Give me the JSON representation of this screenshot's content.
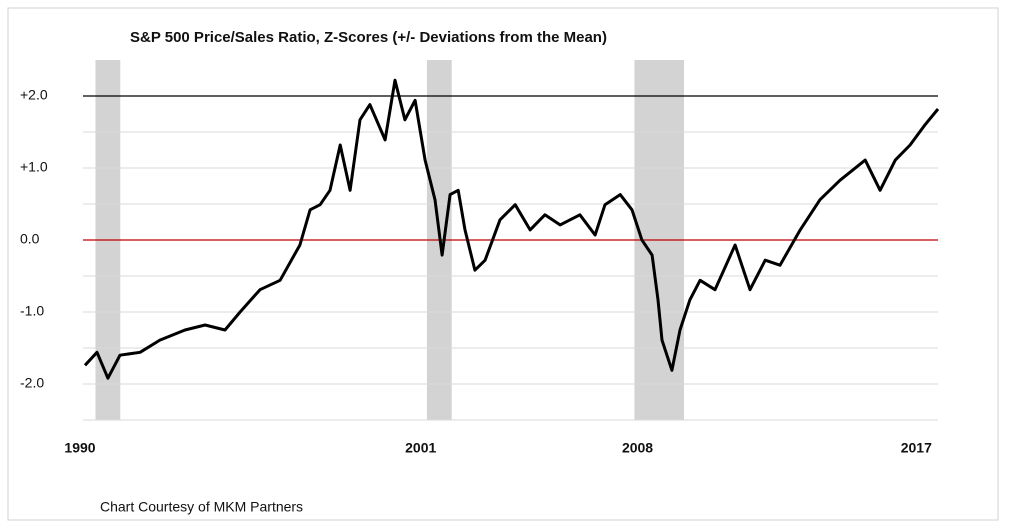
{
  "chart_data": {
    "type": "line",
    "title": "S&P 500 Price/Sales Ratio, Z-Scores (+/- Deviations from the Mean)",
    "caption": "Chart Courtesy of MKM Partners",
    "x": [
      1990.16,
      1990.55,
      1990.9,
      1991.29,
      1991.94,
      1992.58,
      1993.39,
      1994.04,
      1994.68,
      1995.17,
      1995.81,
      1996.46,
      1997.1,
      1997.43,
      1997.75,
      1998.07,
      1998.4,
      1998.72,
      1999.04,
      1999.36,
      1999.85,
      2000.17,
      2000.49,
      2000.82,
      2001.14,
      2001.46,
      2001.69,
      2001.95,
      2002.21,
      2002.43,
      2002.75,
      2003.08,
      2003.56,
      2004.05,
      2004.53,
      2005.01,
      2005.5,
      2006.14,
      2006.63,
      2006.95,
      2007.44,
      2007.82,
      2008.14,
      2008.47,
      2008.66,
      2008.79,
      2009.11,
      2009.37,
      2009.69,
      2010.02,
      2010.5,
      2011.15,
      2011.63,
      2012.12,
      2012.6,
      2013.25,
      2013.89,
      2014.54,
      2015.35,
      2015.83,
      2016.32,
      2016.8,
      2017.28,
      2017.7
    ],
    "values": [
      -1.74,
      -1.56,
      -1.92,
      -1.6,
      -1.56,
      -1.39,
      -1.25,
      -1.18,
      -1.25,
      -1.0,
      -0.69,
      -0.56,
      -0.07,
      0.42,
      0.49,
      0.69,
      1.32,
      0.69,
      1.67,
      1.88,
      1.39,
      2.22,
      1.67,
      1.94,
      1.11,
      0.56,
      -0.21,
      0.63,
      0.69,
      0.14,
      -0.42,
      -0.28,
      0.28,
      0.49,
      0.14,
      0.35,
      0.21,
      0.35,
      0.07,
      0.49,
      0.63,
      0.42,
      0,
      -0.21,
      -0.83,
      -1.39,
      -1.81,
      -1.25,
      -0.83,
      -0.56,
      -0.69,
      -0.07,
      -0.69,
      -0.28,
      -0.35,
      0.14,
      0.56,
      0.83,
      1.11,
      0.69,
      1.11,
      1.32,
      1.6,
      1.82
    ],
    "color": "#000000",
    "xlim": [
      1990,
      2017.7
    ],
    "xticks": [
      1990,
      2001,
      2008,
      2017
    ],
    "ylim": [
      -2.5,
      2.5
    ],
    "yticks": [
      {
        "value": 2,
        "label": "+2.0"
      },
      {
        "value": 1,
        "label": "+1.0"
      },
      {
        "value": 0,
        "label": "0.0"
      },
      {
        "value": -1,
        "label": "-1.0"
      },
      {
        "value": -2,
        "label": "-2.0"
      }
    ],
    "minor_yticks": [
      1.5,
      0.5,
      -0.5,
      -1.5,
      -2.5
    ],
    "grid": true,
    "reference_lines": [
      {
        "value": 2,
        "color": "#000000"
      },
      {
        "value": 0,
        "color": "#c00000"
      }
    ],
    "shaded_periods": [
      [
        1990.5,
        1991.3
      ],
      [
        2001.2,
        2002.0
      ],
      [
        2007.9,
        2009.5
      ]
    ],
    "shade_color": "#d3d3d3"
  }
}
